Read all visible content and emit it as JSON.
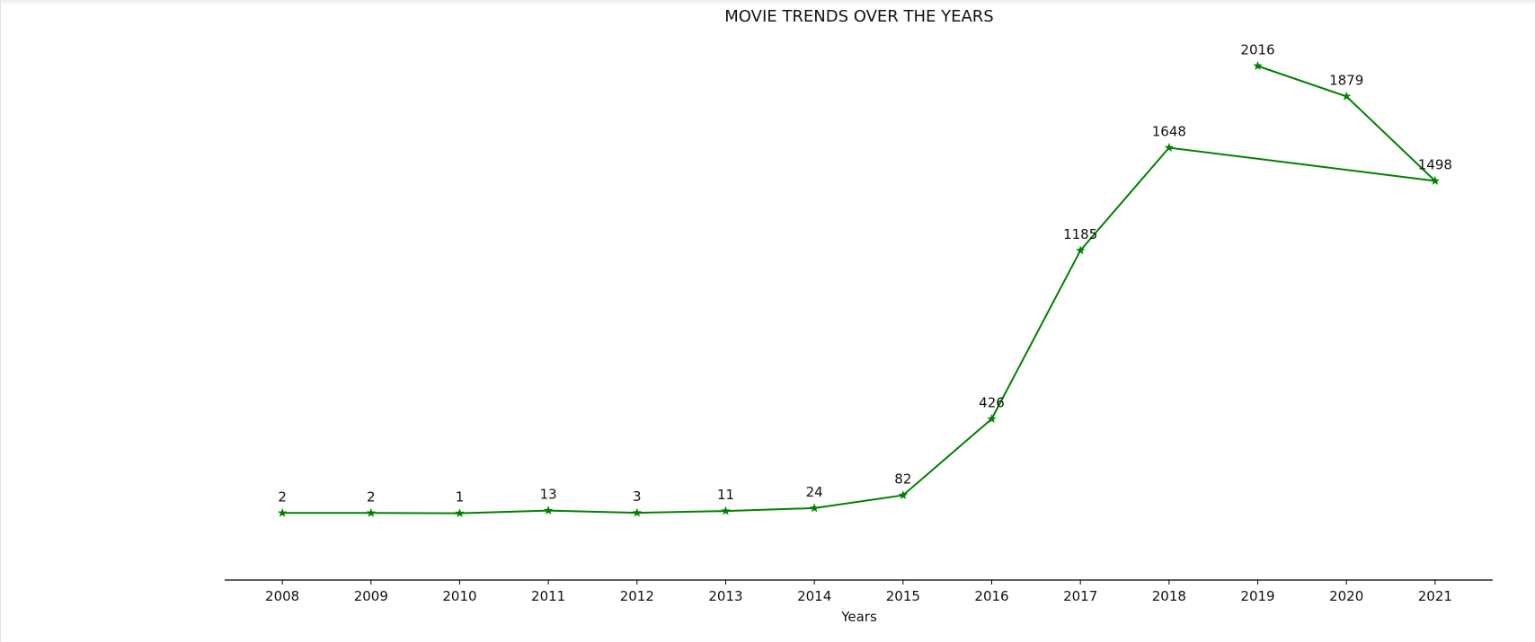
{
  "chart_data": {
    "type": "line",
    "title": "MOVIE TRENDS OVER THE YEARS",
    "xlabel": "Years",
    "ylabel": "",
    "x_ticks": [
      "2008",
      "2009",
      "2010",
      "2011",
      "2012",
      "2013",
      "2014",
      "2015",
      "2016",
      "2017",
      "2018",
      "2019",
      "2020",
      "2021"
    ],
    "x_range": [
      2007.35,
      2021.65
    ],
    "y_range": [
      -300,
      2200
    ],
    "grid": false,
    "legend": "none",
    "marker": "star",
    "colors": {
      "line": "#008000"
    },
    "points": [
      {
        "x": 2008,
        "y": 2
      },
      {
        "x": 2009,
        "y": 2
      },
      {
        "x": 2010,
        "y": 1
      },
      {
        "x": 2011,
        "y": 13
      },
      {
        "x": 2012,
        "y": 3
      },
      {
        "x": 2013,
        "y": 11
      },
      {
        "x": 2014,
        "y": 24
      },
      {
        "x": 2015,
        "y": 82
      },
      {
        "x": 2016,
        "y": 426
      },
      {
        "x": 2017,
        "y": 1185
      },
      {
        "x": 2018,
        "y": 1648
      },
      {
        "x": 2021,
        "y": 1498
      },
      {
        "x": 2020,
        "y": 1879
      },
      {
        "x": 2019,
        "y": 2016
      }
    ]
  }
}
